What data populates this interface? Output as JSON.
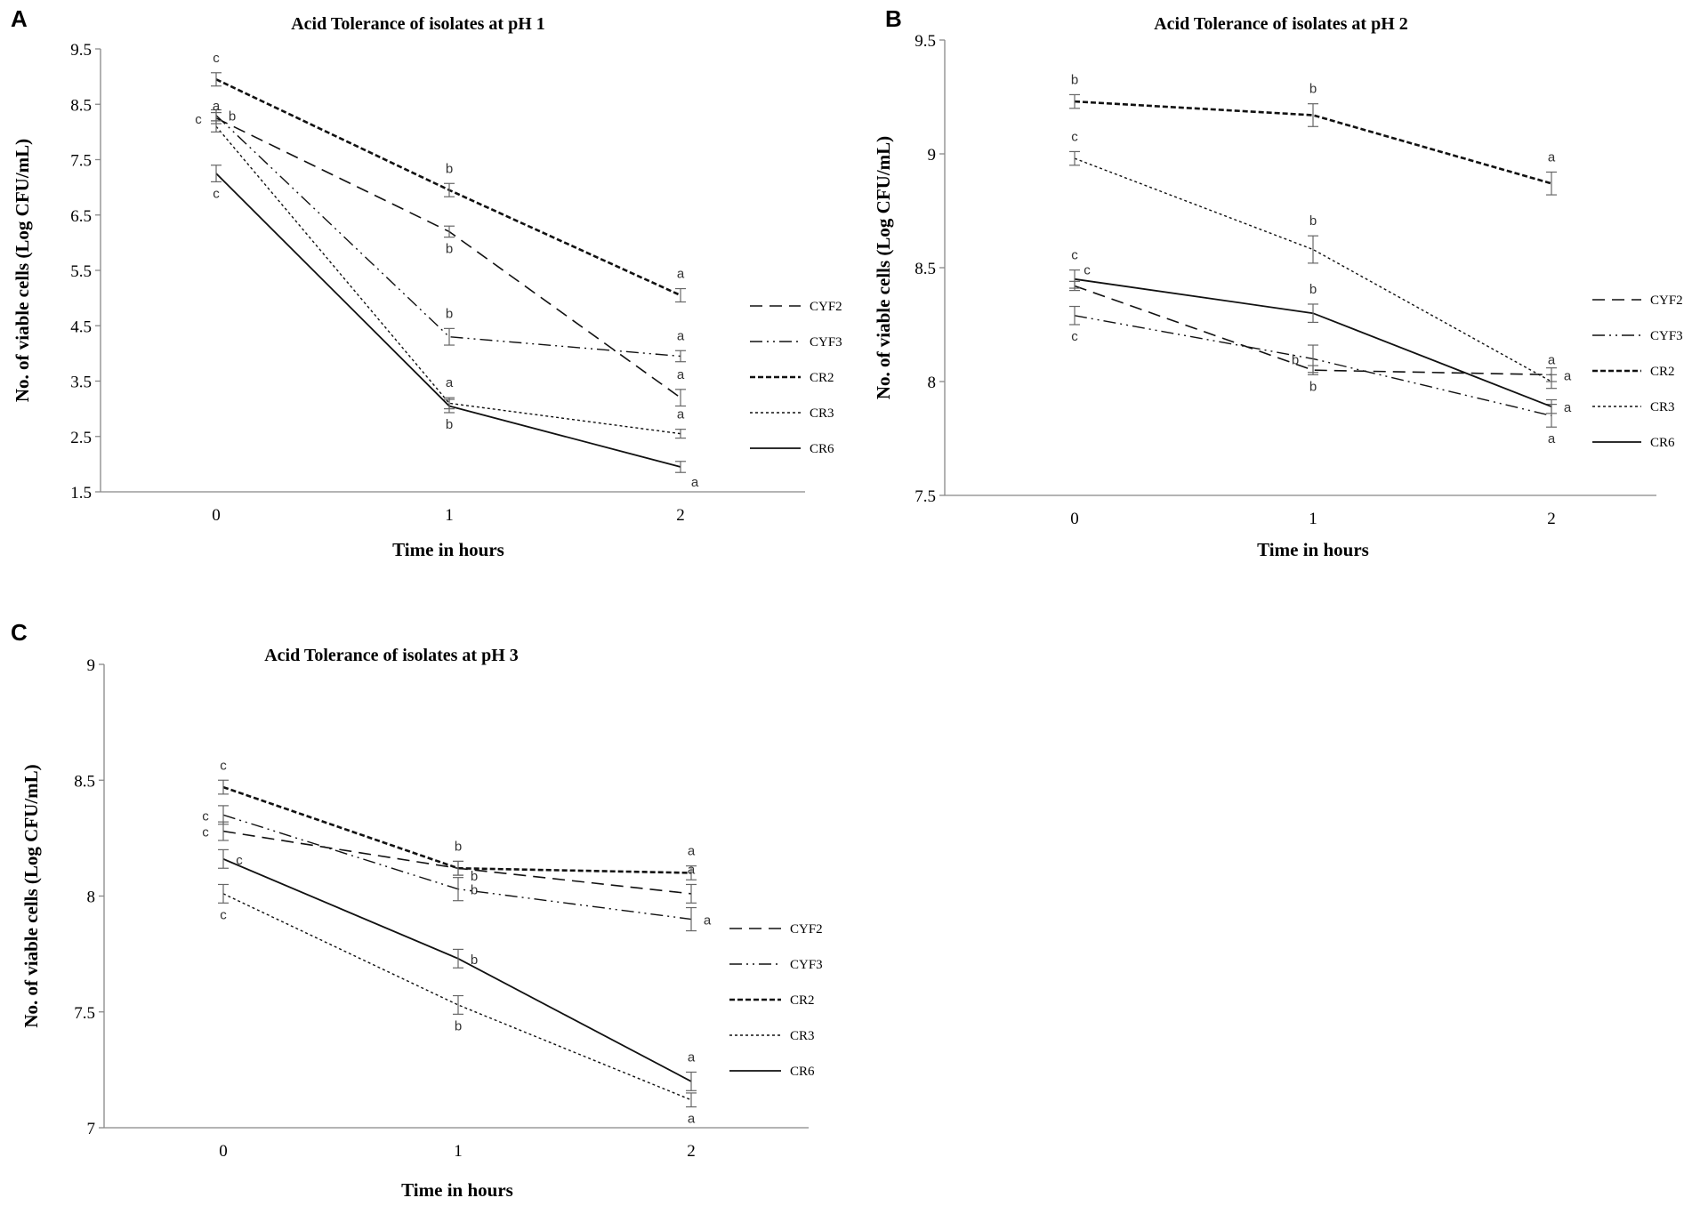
{
  "figure": {
    "background": "#ffffff"
  },
  "chart_data": [
    {
      "type": "line",
      "panel": "A",
      "title": "Acid Tolerance of isolates at pH 1",
      "xlabel": "Time in hours",
      "ylabel": "No. of viable cells (Log CFU/mL)",
      "x": [
        0,
        1,
        2
      ],
      "x_tick_labels": [
        "0",
        "1",
        "2"
      ],
      "ylim": [
        1.5,
        9.5
      ],
      "y_ticks": [
        1.5,
        2.5,
        3.5,
        4.5,
        5.5,
        6.5,
        7.5,
        8.5,
        9.5
      ],
      "y_tick_labels": [
        "1.5",
        "2.5",
        "3.5",
        "4.5",
        "5.5",
        "6.5",
        "7.5",
        "8.5",
        "9.5"
      ],
      "series": [
        {
          "name": "CYF2",
          "dash": "long",
          "values": [
            8.25,
            6.2,
            3.2
          ],
          "errors": [
            0.1,
            0.1,
            0.15
          ],
          "letters": [
            "c",
            "b",
            "a"
          ],
          "letter_positions": [
            "left",
            "below",
            "above"
          ]
        },
        {
          "name": "CYF3",
          "dash": "dashdotdot",
          "values": [
            8.3,
            4.3,
            3.95
          ],
          "errors": [
            0.1,
            0.15,
            0.1
          ],
          "letters": [
            "b",
            "b",
            "a"
          ],
          "letter_positions": [
            "right",
            "above",
            "above"
          ]
        },
        {
          "name": "CR2",
          "dash": "bold",
          "values": [
            8.95,
            6.95,
            5.05
          ],
          "errors": [
            0.12,
            0.12,
            0.12
          ],
          "letters": [
            "c",
            "b",
            "a"
          ],
          "letter_positions": [
            "above",
            "above",
            "above"
          ]
        },
        {
          "name": "CR3",
          "dash": "dotted",
          "values": [
            8.1,
            3.1,
            2.55
          ],
          "errors": [
            0.1,
            0.1,
            0.08
          ],
          "letters": [
            "a",
            "a",
            "a"
          ],
          "letter_positions": [
            "above",
            "above",
            "above"
          ]
        },
        {
          "name": "CR6",
          "dash": "solid",
          "values": [
            7.25,
            3.05,
            1.95
          ],
          "errors": [
            0.15,
            0.12,
            0.1
          ],
          "letters": [
            "c",
            "b",
            "a"
          ],
          "letter_positions": [
            "below",
            "below",
            "belowright"
          ]
        }
      ]
    },
    {
      "type": "line",
      "panel": "B",
      "title": "Acid Tolerance of isolates at pH 2",
      "xlabel": "Time in hours",
      "ylabel": "No. of viable cells (Log CFU/mL)",
      "x": [
        0,
        1,
        2
      ],
      "x_tick_labels": [
        "0",
        "1",
        "2"
      ],
      "ylim": [
        7.5,
        9.5
      ],
      "y_ticks": [
        7.5,
        8,
        8.5,
        9,
        9.5
      ],
      "y_tick_labels": [
        "7.5",
        "8",
        "8.5",
        "9",
        "9.5"
      ],
      "series": [
        {
          "name": "CYF2",
          "dash": "long",
          "values": [
            8.42,
            8.05,
            8.03
          ],
          "errors": [
            0.02,
            0.02,
            0.03
          ],
          "letters": [
            "c",
            "b",
            "a"
          ],
          "letter_positions": [
            "aboveright",
            "below",
            "right"
          ]
        },
        {
          "name": "CYF3",
          "dash": "dashdotdot",
          "values": [
            8.29,
            8.1,
            7.85
          ],
          "errors": [
            0.04,
            0.06,
            0.05
          ],
          "letters": [
            "c",
            "b",
            "a"
          ],
          "letter_positions": [
            "below",
            "left",
            "below"
          ]
        },
        {
          "name": "CR2",
          "dash": "bold",
          "values": [
            9.23,
            9.17,
            8.87
          ],
          "errors": [
            0.03,
            0.05,
            0.05
          ],
          "letters": [
            "b",
            "b",
            "a"
          ],
          "letter_positions": [
            "above",
            "above",
            "above"
          ]
        },
        {
          "name": "CR3",
          "dash": "dotted",
          "values": [
            8.98,
            8.58,
            8.0
          ],
          "errors": [
            0.03,
            0.06,
            0.03
          ],
          "letters": [
            "c",
            "b",
            "a"
          ],
          "letter_positions": [
            "above",
            "above",
            "above"
          ]
        },
        {
          "name": "CR6",
          "dash": "solid",
          "values": [
            8.45,
            8.3,
            7.89
          ],
          "errors": [
            0.04,
            0.04,
            0.03
          ],
          "letters": [
            "c",
            "b",
            "a"
          ],
          "letter_positions": [
            "above",
            "above",
            "right"
          ]
        }
      ]
    },
    {
      "type": "line",
      "panel": "C",
      "title": "Acid Tolerance of isolates at pH 3",
      "xlabel": "Time in hours",
      "ylabel": "No. of viable cells (Log CFU/mL)",
      "x": [
        0,
        1,
        2
      ],
      "x_tick_labels": [
        "0",
        "1",
        "2"
      ],
      "ylim": [
        7,
        9
      ],
      "y_ticks": [
        7,
        7.5,
        8,
        8.5,
        9
      ],
      "y_tick_labels": [
        "7",
        "7.5",
        "8",
        "8.5",
        "9"
      ],
      "series": [
        {
          "name": "CYF2",
          "dash": "long",
          "values": [
            8.28,
            8.12,
            8.01
          ],
          "errors": [
            0.04,
            0.03,
            0.04
          ],
          "letters": [
            "c",
            "b",
            "a"
          ],
          "letter_positions": [
            "left",
            "rightlow",
            "above"
          ]
        },
        {
          "name": "CYF3",
          "dash": "dashdotdot",
          "values": [
            8.35,
            8.03,
            7.9
          ],
          "errors": [
            0.04,
            0.05,
            0.05
          ],
          "letters": [
            "c",
            "b",
            "a"
          ],
          "letter_positions": [
            "left",
            "right",
            "right"
          ]
        },
        {
          "name": "CR2",
          "dash": "bold",
          "values": [
            8.47,
            8.12,
            8.1
          ],
          "errors": [
            0.03,
            0.03,
            0.03
          ],
          "letters": [
            "c",
            "b",
            "a"
          ],
          "letter_positions": [
            "above",
            "above",
            "above"
          ]
        },
        {
          "name": "CR3",
          "dash": "dotted",
          "values": [
            8.01,
            7.53,
            7.12
          ],
          "errors": [
            0.04,
            0.04,
            0.03
          ],
          "letters": [
            "c",
            "b",
            "a"
          ],
          "letter_positions": [
            "below",
            "below",
            "below"
          ]
        },
        {
          "name": "CR6",
          "dash": "solid",
          "values": [
            8.16,
            7.73,
            7.2
          ],
          "errors": [
            0.04,
            0.04,
            0.04
          ],
          "letters": [
            "c",
            "b",
            "a"
          ],
          "letter_positions": [
            "right",
            "right",
            "above"
          ]
        }
      ]
    }
  ]
}
